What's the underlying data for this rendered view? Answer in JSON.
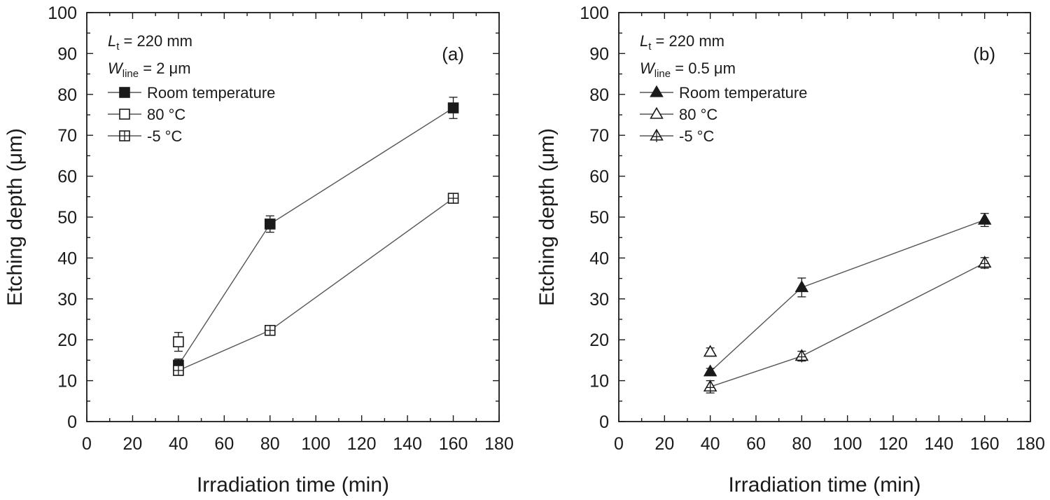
{
  "chart_data": [
    {
      "type": "line",
      "panel_label": "(a)",
      "xlabel": "Irradiation time (min)",
      "ylabel": "Etching depth (μm)",
      "xlim": [
        0,
        180
      ],
      "ylim": [
        0,
        100
      ],
      "xticks": [
        "0",
        "20",
        "40",
        "60",
        "80",
        "100",
        "120",
        "140",
        "160",
        "180"
      ],
      "yticks": [
        "0",
        "10",
        "20",
        "30",
        "40",
        "50",
        "60",
        "70",
        "80",
        "90",
        "100"
      ],
      "annotations": [
        {
          "var": "L",
          "sub": "t",
          "rest": " = 220 mm"
        },
        {
          "var": "W",
          "sub": "line",
          "rest": " = 2 μm"
        }
      ],
      "legend_position": "top-left",
      "series": [
        {
          "name": "Room temperature",
          "marker": "square-filled",
          "connected": true,
          "x": [
            40,
            80,
            160
          ],
          "y": [
            13.8,
            48.3,
            76.7
          ],
          "err": [
            1.5,
            2.0,
            2.6
          ]
        },
        {
          "name": "80 °C",
          "marker": "square-open",
          "connected": false,
          "x": [
            40
          ],
          "y": [
            19.5
          ],
          "err": [
            2.3
          ]
        },
        {
          "name": "-5 °C",
          "marker": "square-cross",
          "connected": true,
          "x": [
            40,
            80,
            160
          ],
          "y": [
            12.5,
            22.3,
            54.6
          ],
          "err": [
            1.2,
            1.0,
            0.8
          ]
        }
      ]
    },
    {
      "type": "line",
      "panel_label": "(b)",
      "xlabel": "Irradiation time (min)",
      "ylabel": "Etching depth (μm)",
      "xlim": [
        0,
        180
      ],
      "ylim": [
        0,
        100
      ],
      "xticks": [
        "0",
        "20",
        "40",
        "60",
        "80",
        "100",
        "120",
        "140",
        "160",
        "180"
      ],
      "yticks": [
        "0",
        "10",
        "20",
        "30",
        "40",
        "50",
        "60",
        "70",
        "80",
        "90",
        "100"
      ],
      "annotations": [
        {
          "var": "L",
          "sub": "t",
          "rest": " = 220 mm"
        },
        {
          "var": "W",
          "sub": "line",
          "rest": " = 0.5 μm"
        }
      ],
      "legend_position": "top-left",
      "series": [
        {
          "name": "Room temperature",
          "marker": "triangle-filled",
          "connected": true,
          "x": [
            40,
            80,
            160
          ],
          "y": [
            12.2,
            32.8,
            49.3
          ],
          "err": [
            0.8,
            2.3,
            1.6
          ]
        },
        {
          "name": "80 °C",
          "marker": "triangle-open",
          "connected": false,
          "x": [
            40
          ],
          "y": [
            17.0
          ],
          "err": [
            1.0
          ]
        },
        {
          "name": "-5 °C",
          "marker": "triangle-cross",
          "connected": true,
          "x": [
            40,
            80,
            160
          ],
          "y": [
            8.5,
            16.0,
            38.8
          ],
          "err": [
            1.5,
            1.2,
            1.3
          ]
        }
      ]
    }
  ]
}
